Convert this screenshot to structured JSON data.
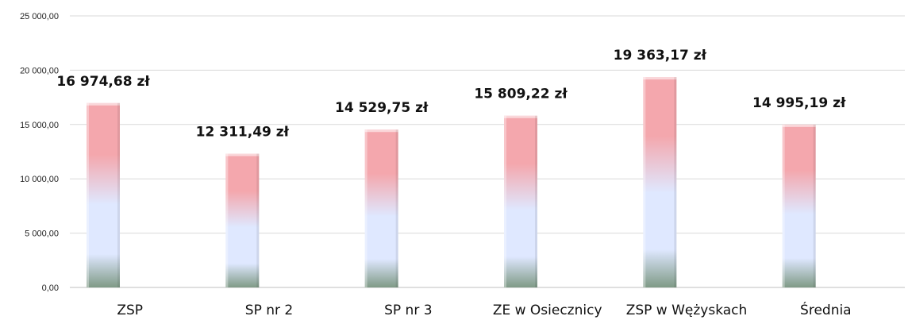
{
  "chart_data": {
    "type": "bar",
    "title": "",
    "xlabel": "",
    "ylabel": "",
    "ylim": [
      0,
      25000
    ],
    "yticks": [
      0,
      5000,
      10000,
      15000,
      20000,
      25000
    ],
    "ytick_labels": [
      "0,00",
      "5 000,00",
      "10 000,00",
      "15 000,00",
      "20 000,00",
      "25 000,00"
    ],
    "grid": true,
    "legend": "none",
    "categories": [
      "ZSP",
      "SP nr 2",
      "SP nr 3",
      "ZE w Osiecznicy",
      "ZSP w Wężyskach",
      "Średnia"
    ],
    "values": [
      16974.68,
      12311.49,
      14529.75,
      15809.22,
      19363.17,
      14995.19
    ],
    "data_labels": [
      "16 974,68 zł",
      "12 311,49 zł",
      "14 529,75 zł",
      "15 809,22 zł",
      "19 363,17 zł",
      "14 995,19 zł"
    ],
    "bar_gradient": [
      "#f4a7ad",
      "#dfe8ff",
      "#7f9a86"
    ]
  }
}
